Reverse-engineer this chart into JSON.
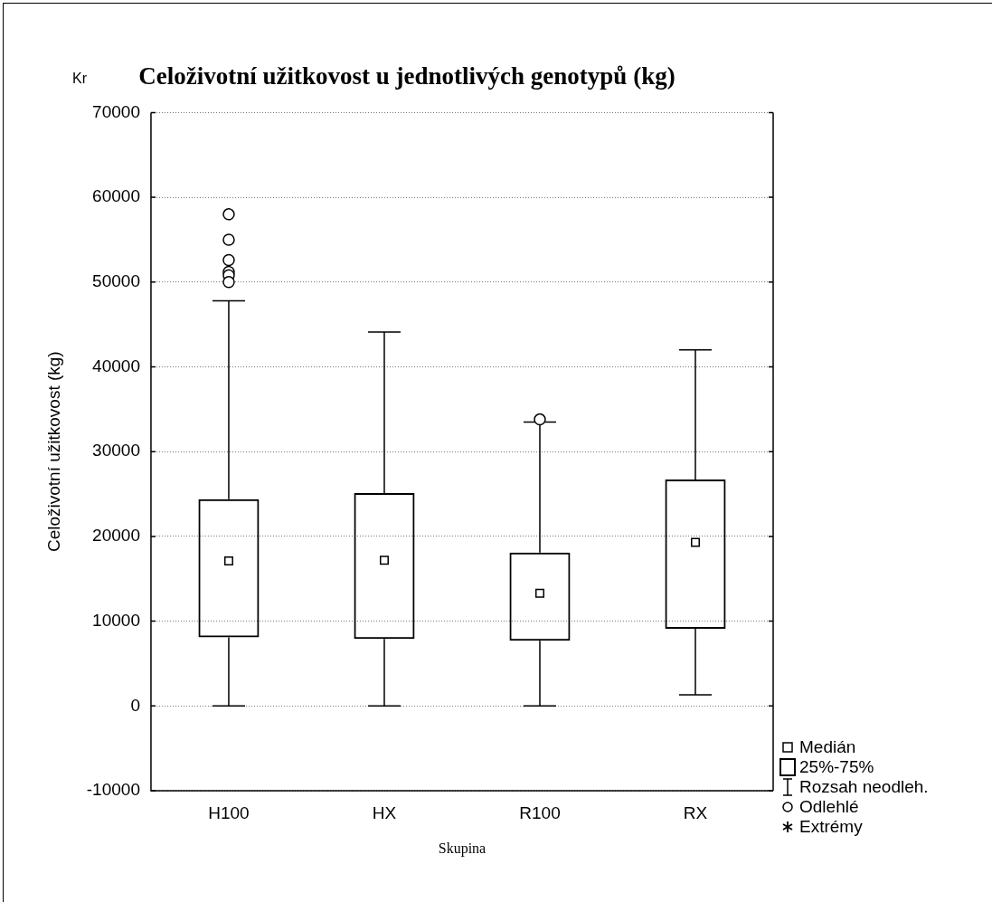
{
  "chart_data": {
    "type": "box",
    "title": "Celoživotní užitkovost u jednotlivých genotypů (kg)",
    "xlabel": "Skupina",
    "ylabel": "Celoživotní užitkovost (kg)",
    "categories": [
      "H100",
      "HX",
      "R100",
      "RX"
    ],
    "boxes": [
      {
        "low": 0,
        "q1": 8100,
        "median": 17100,
        "q3": 24400,
        "high": 47800,
        "outliers": [
          58000,
          55000,
          52600,
          51200,
          50800,
          50000
        ]
      },
      {
        "low": 0,
        "q1": 7900,
        "median": 17200,
        "q3": 25100,
        "high": 44100
      },
      {
        "low": 0,
        "q1": 7700,
        "median": 13300,
        "q3": 18100,
        "high": 33500,
        "outliers": [
          33800
        ]
      },
      {
        "low": 1300,
        "q1": 9100,
        "median": 19300,
        "q3": 26700,
        "high": 42000
      }
    ],
    "ylim": [
      -10000,
      70000
    ],
    "yticks": [
      -10000,
      0,
      10000,
      20000,
      30000,
      40000,
      50000,
      60000,
      70000
    ],
    "grid": "y",
    "annotations": [
      "Kr",
      "Medián",
      "25%-75%",
      "Rozsah neodleh.",
      "Odlehlé",
      "Extrémy"
    ]
  }
}
